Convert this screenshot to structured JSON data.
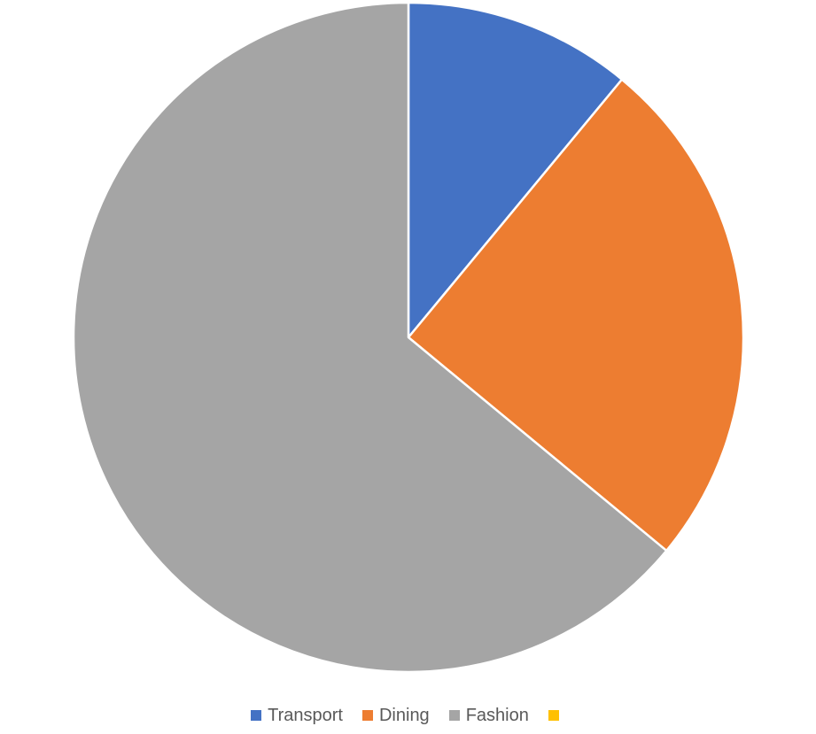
{
  "chart_data": {
    "type": "pie",
    "title": "",
    "categories": [
      "Transport",
      "Dining",
      "Fashion",
      ""
    ],
    "values": [
      11,
      25,
      64,
      0
    ],
    "colors": [
      "#4472C4",
      "#ED7D31",
      "#A5A5A5",
      "#FFC000"
    ],
    "start_angle_deg": 0,
    "direction": "clockwise",
    "slice_border_color": "#FFFFFF",
    "legend": {
      "position": "bottom",
      "entries": [
        {
          "label": "Transport",
          "color": "#4472C4"
        },
        {
          "label": "Dining",
          "color": "#ED7D31"
        },
        {
          "label": "Fashion",
          "color": "#A5A5A5"
        },
        {
          "label": "",
          "color": "#FFC000"
        }
      ]
    }
  }
}
